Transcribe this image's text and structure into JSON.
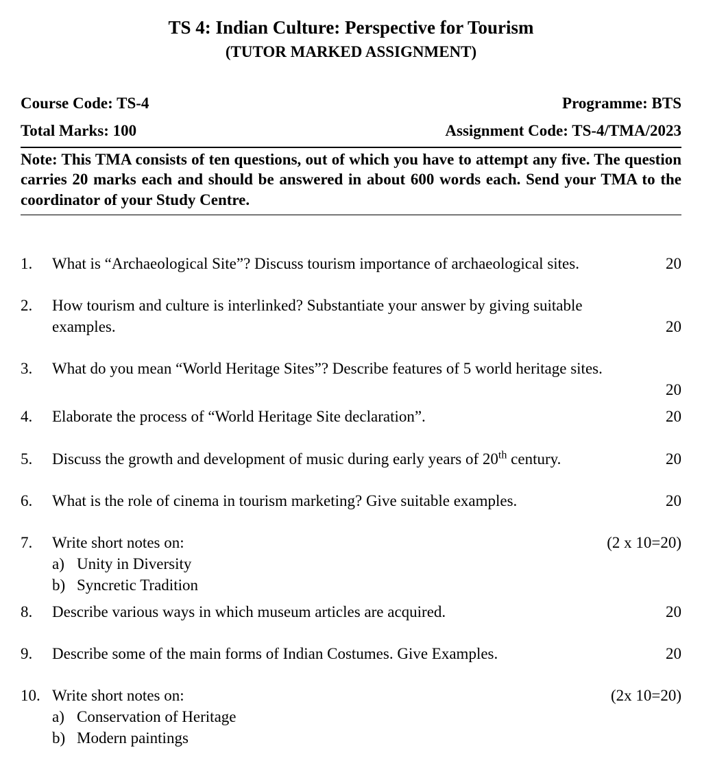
{
  "title": "TS 4: Indian Culture: Perspective for Tourism",
  "subtitle": "(TUTOR MARKED ASSIGNMENT)",
  "header": {
    "course_code_label": "Course Code: TS-4",
    "programme_label": "Programme: BTS",
    "total_marks_label": "Total Marks: 100",
    "assignment_code_label": "Assignment Code: TS-4/TMA/2023"
  },
  "note_prefix": "Note:",
  "note_text": "This TMA consists of ten questions, out of which you have to attempt any five. The question carries 20 marks each and should be answered in about 600 words each. Send your TMA to the coordinator of your Study Centre.",
  "questions": [
    {
      "num": "1.",
      "text": "What is “Archaeological Site”? Discuss tourism importance of archaeological sites.",
      "marks": "20",
      "marks_inline": true
    },
    {
      "num": "2.",
      "text": "How tourism and culture is interlinked? Substantiate your answer by giving suitable examples.",
      "marks": "20"
    },
    {
      "num": "3.",
      "text": "What do you mean “World Heritage Sites”? Describe features of 5 world heritage sites.",
      "marks": "20",
      "marks_below": true
    },
    {
      "num": "4.",
      "text": "Elaborate the process of “World Heritage Site declaration”.",
      "marks": "20",
      "tight_above": true
    },
    {
      "num": "5.",
      "text_html": "Discuss the growth and development of music during early years of 20<sup>th</sup> century.",
      "marks": "20"
    },
    {
      "num": "6.",
      "text": "What is the role of cinema in tourism marketing? Give suitable examples.",
      "marks": "20"
    },
    {
      "num": "7.",
      "text": "Write short notes on:",
      "marks": "(2 x 10=20)",
      "subs": [
        {
          "label": "a)",
          "text": "Unity in Diversity"
        },
        {
          "label": "b)",
          "text": "Syncretic Tradition"
        }
      ]
    },
    {
      "num": "8.",
      "text": "Describe various ways in which museum articles are acquired.",
      "marks": "20",
      "tight_above": true
    },
    {
      "num": "9.",
      "text": "Describe some of the main forms of Indian Costumes. Give Examples.",
      "marks": "20"
    },
    {
      "num": "10.",
      "text": "Write short notes on:",
      "marks": "(2x 10=20)",
      "subs": [
        {
          "label": "a)",
          "text": "Conservation of Heritage"
        },
        {
          "label": "b)",
          "text": "Modern paintings"
        }
      ]
    }
  ]
}
